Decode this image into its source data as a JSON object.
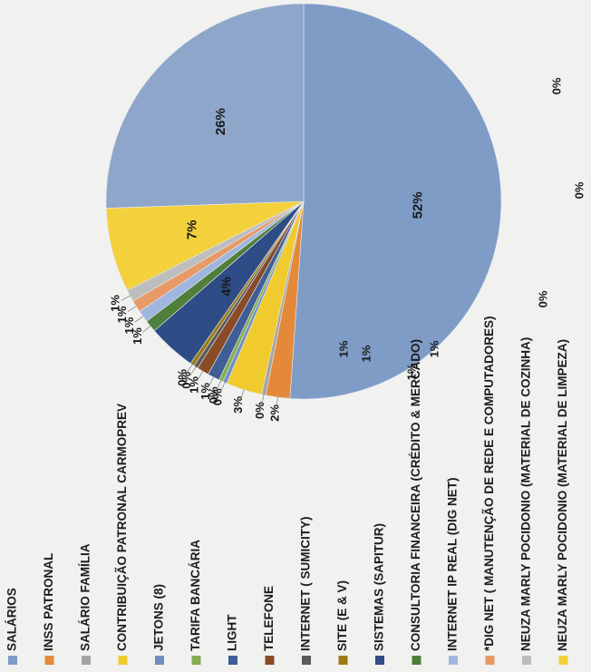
{
  "chart_data": {
    "type": "pie",
    "title": "",
    "slices": [
      {
        "label": "SALÁRIOS",
        "value": 52,
        "value_label": "52%",
        "color": "#7f9cc7"
      },
      {
        "label": "INSS PATRONAL",
        "value": 2,
        "value_label": "2%",
        "color": "#e4893a"
      },
      {
        "label": "SALÁRIO FAMÍLIA",
        "value": 0,
        "value_label": "0%",
        "color": "#a4a4a4"
      },
      {
        "label": "CONTRIBUIÇÃO PATRONAL CARMOPREV",
        "value": 3,
        "value_label": "3%",
        "color": "#f1cb2e"
      },
      {
        "label": "JETONS (8)",
        "value": 0,
        "value_label": "0%",
        "color": "#6f8fc4"
      },
      {
        "label": "TARIFA BANCÁRIA",
        "value": 0,
        "value_label": "0%",
        "color": "#86ad55"
      },
      {
        "label": "LIGHT",
        "value": 1,
        "value_label": "1%",
        "color": "#3f5e96"
      },
      {
        "label": "TELEFONE",
        "value": 1,
        "value_label": "1%",
        "color": "#8a4b27"
      },
      {
        "label": "INTERNET ( SUMICITY)",
        "value": 0,
        "value_label": "0%",
        "color": "#5b5b5b"
      },
      {
        "label": "SITE (E & V)",
        "value": 0,
        "value_label": "0%",
        "color": "#9c7a14"
      },
      {
        "label": "SISTEMAS (SAPITUR)",
        "value": 4,
        "value_label": "4%",
        "color": "#2e4c86"
      },
      {
        "label": "CONSULTORIA FINANCEIRA (CRÉDITO & MERCADO)",
        "value": 1,
        "value_label": "1%",
        "color": "#4f7f3a"
      },
      {
        "label": "INTERNET IP REAL (DIG NET)",
        "value": 1,
        "value_label": "1%",
        "color": "#9fb7de"
      },
      {
        "label": "*DIG NET ( MANUTENÇÃO DE REDE E COMPUTADORES)",
        "value": 1,
        "value_label": "1%",
        "color": "#e79a66"
      },
      {
        "label": "NEUZA MARLY POCIDONIO (MATERIAL DE COZINHA)",
        "value": 1,
        "value_label": "1%",
        "color": "#bdbdbd"
      },
      {
        "label": "NEUZA MARLY POCIDONIO (MATERIAL DE LIMPEZA)",
        "value": 7,
        "value_label": "7%",
        "color": "#f3d13c"
      },
      {
        "label": "",
        "value": 26,
        "value_label": "26%",
        "color": "#8fa6cb"
      }
    ],
    "extra_labels": [
      "0%",
      "0%",
      "0%",
      "1%",
      "1%",
      "1%",
      "1%"
    ],
    "legend_position": "bottom"
  }
}
